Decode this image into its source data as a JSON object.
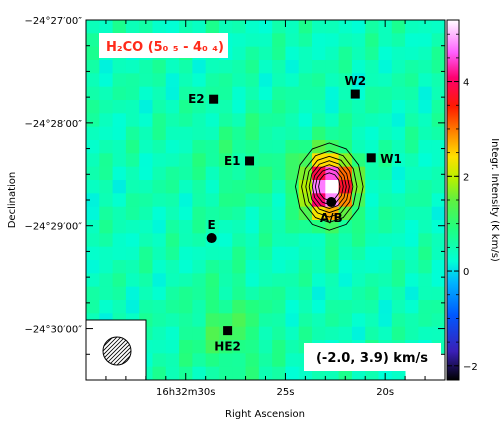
{
  "chart_data": {
    "type": "heatmap",
    "title": "H₂CO (5₀ ₅ - 4₀ ₄)",
    "velocity_range": "(-2.0, 3.9) km/s",
    "xlabel": "Right Ascension",
    "ylabel": "Declination",
    "colorbar_label": "Integr. Intensity (K km/s)",
    "colorbar_range": [
      -2.3,
      5.3
    ],
    "colorbar_ticks": [
      {
        "value": -2,
        "label": "−2"
      },
      {
        "value": 0,
        "label": "0"
      },
      {
        "value": 2,
        "label": "2"
      },
      {
        "value": 4,
        "label": "4"
      }
    ],
    "x_range_s": [
      35.0,
      17.0
    ],
    "y_range_arcmin": [
      -3.5,
      0.0
    ],
    "x_ticks": [
      {
        "value": 30,
        "label": "16h32m30s"
      },
      {
        "value": 25,
        "label": "25s"
      },
      {
        "value": 20,
        "label": "20s"
      }
    ],
    "y_ticks": [
      {
        "value": 0,
        "label": "−24°27′00″"
      },
      {
        "value": -1,
        "label": "−24°28′00″"
      },
      {
        "value": -2,
        "label": "−24°29′00″"
      },
      {
        "value": -3,
        "label": "−24°30′00″"
      }
    ],
    "sources": [
      {
        "label": "E2",
        "ra_s": 28.6,
        "dec_arcmin": -0.77,
        "marker": "square",
        "label_side": "left"
      },
      {
        "label": "W2",
        "ra_s": 21.5,
        "dec_arcmin": -0.72,
        "marker": "square",
        "label_side": "above"
      },
      {
        "label": "E1",
        "ra_s": 26.8,
        "dec_arcmin": -1.37,
        "marker": "square",
        "label_side": "left"
      },
      {
        "label": "W1",
        "ra_s": 20.7,
        "dec_arcmin": -1.34,
        "marker": "square",
        "label_side": "right"
      },
      {
        "label": "A/B",
        "ra_s": 22.7,
        "dec_arcmin": -1.77,
        "marker": "circle",
        "label_side": "below"
      },
      {
        "label": "E",
        "ra_s": 28.7,
        "dec_arcmin": -2.12,
        "marker": "circle",
        "label_side": "above"
      },
      {
        "label": "HE2",
        "ra_s": 27.9,
        "dec_arcmin": -3.02,
        "marker": "square",
        "label_side": "below"
      }
    ],
    "peak": {
      "ra_s": 22.8,
      "dec_arcmin": -1.62,
      "intensity": 5.2
    },
    "contours": [
      1.0,
      1.6,
      2.2,
      2.8,
      3.4,
      4.0,
      4.6
    ]
  }
}
